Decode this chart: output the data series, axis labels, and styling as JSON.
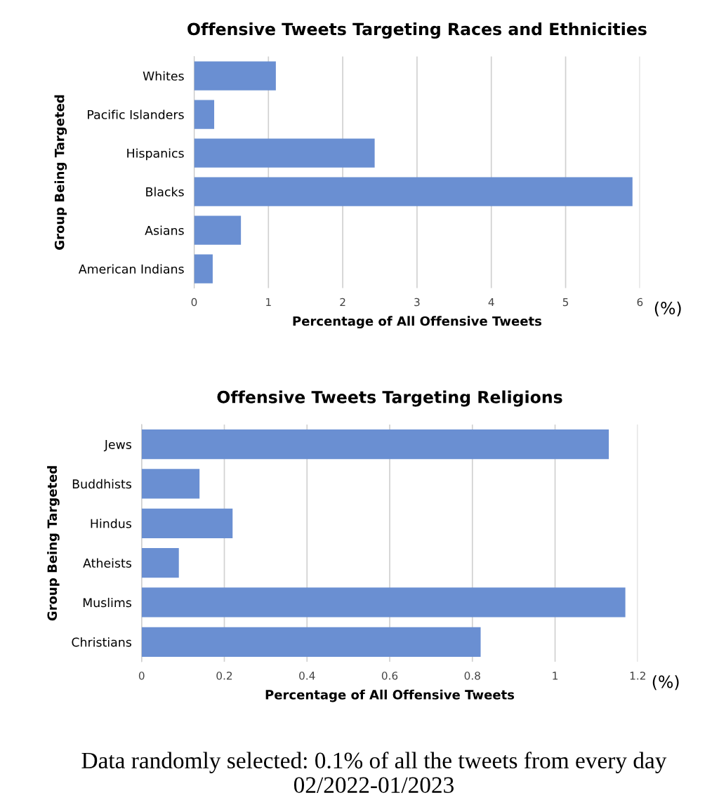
{
  "chart_data": [
    {
      "type": "bar",
      "orientation": "horizontal",
      "title": "Offensive Tweets Targeting Races and Ethnicities",
      "xlabel": "Percentage of All Offensive Tweets",
      "ylabel": "Group Being Targeted",
      "categories": [
        "Whites",
        "Pacific Islanders",
        "Hispanics",
        "Blacks",
        "Asians",
        "American Indians"
      ],
      "values": [
        1.1,
        0.27,
        2.43,
        5.9,
        0.63,
        0.25
      ],
      "color": "#6a8fd2",
      "xlim": [
        0,
        6
      ],
      "xticks": [
        0,
        1,
        2,
        3,
        4,
        5,
        6
      ],
      "grid": "x",
      "annotations": [
        "(%)"
      ]
    },
    {
      "type": "bar",
      "orientation": "horizontal",
      "title": "Offensive Tweets Targeting Religions",
      "xlabel": "Percentage of All Offensive Tweets",
      "ylabel": "Group Being Targeted",
      "categories": [
        "Jews",
        "Buddhists",
        "Hindus",
        "Atheists",
        "Muslims",
        "Christians"
      ],
      "values": [
        1.13,
        0.14,
        0.22,
        0.09,
        1.17,
        0.82
      ],
      "color": "#6a8fd2",
      "xlim": [
        0,
        1.2
      ],
      "xticks": [
        0,
        0.2,
        0.4,
        0.6,
        0.8,
        1,
        1.2
      ],
      "grid": "x",
      "annotations": [
        "(%)",
        "Data randomly selected: 0.1% of all the tweets from every day 02/2022-01/2023"
      ]
    }
  ]
}
